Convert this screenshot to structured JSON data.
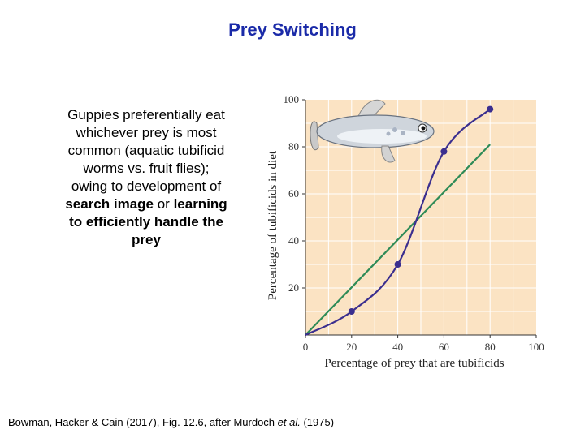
{
  "title": "Prey Switching",
  "description": {
    "line1": "Guppies preferentially eat whichever prey is most common (aquatic tubificid worms vs. fruit flies);",
    "line2_a": "owing to development of ",
    "line2_b": "search image",
    "line2_c": " or ",
    "line2_d": "learning to efficiently handle the prey"
  },
  "citation": {
    "part1": "Bowman, Hacker & Cain (2017), Fig. 12.6, after Murdoch ",
    "etal": "et al.",
    "part2": " (1975)"
  },
  "colors": {
    "title": "#1a2aa8",
    "plot_background": "#fbe3c3",
    "grid": "#ffffff",
    "observed_line": "#3b2f8f",
    "expected_line": "#2e8b57"
  },
  "icons": {
    "fish": "guppy-fish-illustration"
  },
  "chart_data": {
    "type": "line",
    "xlabel": "Percentage of prey that are tubificids",
    "ylabel": "Percentage of tubificids in diet",
    "xlim": [
      0,
      100
    ],
    "ylim": [
      0,
      100
    ],
    "xticks": [
      "0",
      "20",
      "40",
      "60",
      "80",
      "100"
    ],
    "yticks": [
      "20",
      "40",
      "60",
      "80",
      "100"
    ],
    "grid": true,
    "series": [
      {
        "kind": "observed",
        "x": [
          0,
          20,
          40,
          60,
          80
        ],
        "y": [
          0,
          10,
          30,
          78,
          96
        ],
        "markers": true
      },
      {
        "kind": "expected",
        "x": [
          0,
          80
        ],
        "y": [
          0,
          81
        ],
        "markers": false
      }
    ]
  }
}
